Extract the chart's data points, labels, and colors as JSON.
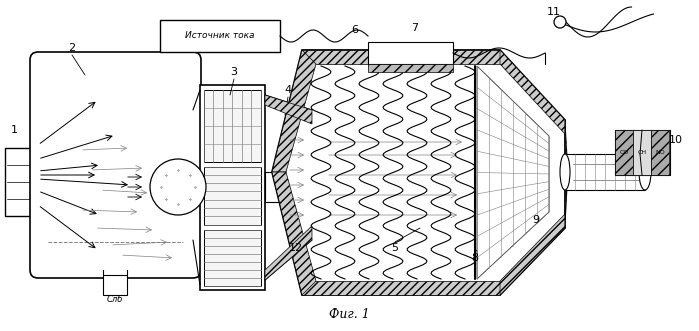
{
  "bg_color": "#ffffff",
  "line_color": "#000000",
  "title": "Фиг. 1",
  "source_label": "Источник тока",
  "drain_label": "Слб",
  "figsize": [
    6.99,
    3.31
  ],
  "dpi": 100
}
